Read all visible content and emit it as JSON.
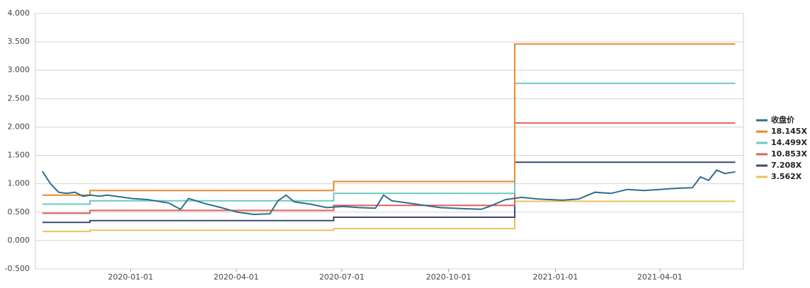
{
  "chart_data": {
    "type": "line",
    "x": [
      "2019-10-17",
      "2019-11-27",
      "2019-11-27",
      "2020-06-24",
      "2020-06-24",
      "2020-11-27",
      "2020-11-27",
      "2021-06-05"
    ],
    "series": [
      {
        "name": "收盘价",
        "color": "#2e6e8e",
        "x": [
          "2019-10-17",
          "2019-10-24",
          "2019-10-31",
          "2019-11-07",
          "2019-11-14",
          "2019-11-21",
          "2019-11-28",
          "2019-12-05",
          "2019-12-12",
          "2019-12-19",
          "2020-01-02",
          "2020-01-16",
          "2020-02-03",
          "2020-02-13",
          "2020-02-20",
          "2020-03-05",
          "2020-03-19",
          "2020-04-02",
          "2020-04-16",
          "2020-04-30",
          "2020-05-07",
          "2020-05-14",
          "2020-05-21",
          "2020-06-04",
          "2020-06-18",
          "2020-07-02",
          "2020-07-16",
          "2020-07-30",
          "2020-08-06",
          "2020-08-13",
          "2020-08-27",
          "2020-09-10",
          "2020-09-24",
          "2020-10-15",
          "2020-10-29",
          "2020-11-05",
          "2020-11-19",
          "2020-12-03",
          "2020-12-17",
          "2021-01-07",
          "2021-01-21",
          "2021-02-04",
          "2021-02-18",
          "2021-03-04",
          "2021-03-18",
          "2021-04-01",
          "2021-04-15",
          "2021-04-29",
          "2021-05-06",
          "2021-05-13",
          "2021-05-20",
          "2021-05-27",
          "2021-06-05"
        ],
        "values": [
          1.22,
          1.0,
          0.85,
          0.83,
          0.85,
          0.78,
          0.8,
          0.78,
          0.8,
          0.78,
          0.74,
          0.72,
          0.66,
          0.55,
          0.74,
          0.65,
          0.58,
          0.5,
          0.46,
          0.47,
          0.7,
          0.8,
          0.68,
          0.64,
          0.58,
          0.6,
          0.58,
          0.57,
          0.8,
          0.7,
          0.66,
          0.62,
          0.58,
          0.56,
          0.55,
          0.6,
          0.72,
          0.76,
          0.73,
          0.71,
          0.73,
          0.85,
          0.83,
          0.9,
          0.88,
          0.9,
          0.92,
          0.93,
          1.12,
          1.06,
          1.24,
          1.18,
          1.21
        ]
      },
      {
        "name": "18.145X",
        "color": "#e8892b",
        "values": [
          0.8,
          0.8,
          0.88,
          0.88,
          1.04,
          1.04,
          3.46,
          3.46
        ]
      },
      {
        "name": "14.499X",
        "color": "#6cc9c4",
        "values": [
          0.64,
          0.64,
          0.7,
          0.7,
          0.83,
          0.83,
          2.77,
          2.77
        ]
      },
      {
        "name": "10.853X",
        "color": "#e0605c",
        "values": [
          0.48,
          0.48,
          0.53,
          0.53,
          0.62,
          0.62,
          2.07,
          2.07
        ]
      },
      {
        "name": "7.208X",
        "color": "#3e4a6e",
        "values": [
          0.32,
          0.32,
          0.35,
          0.35,
          0.41,
          0.41,
          1.38,
          1.38
        ]
      },
      {
        "name": "3.562X",
        "color": "#e9c35a",
        "values": [
          0.16,
          0.16,
          0.18,
          0.18,
          0.21,
          0.21,
          0.69,
          0.69
        ]
      }
    ],
    "xlim": [
      "2019-10-11",
      "2021-06-12"
    ],
    "xticks": [
      "2020-01-01",
      "2020-04-01",
      "2020-07-01",
      "2020-10-01",
      "2021-01-01",
      "2021-04-01"
    ],
    "ylim": [
      -0.5,
      4.0
    ],
    "yticks": [
      {
        "value": -0.5,
        "label": "-0.500"
      },
      {
        "value": 0,
        "label": "0.000"
      },
      {
        "value": 0.5,
        "label": "0.500"
      },
      {
        "value": 1,
        "label": "1.000"
      },
      {
        "value": 1.5,
        "label": "1.500"
      },
      {
        "value": 2,
        "label": "2.000"
      },
      {
        "value": 2.5,
        "label": "2.500"
      },
      {
        "value": 3,
        "label": "3.000"
      },
      {
        "value": 3.5,
        "label": "3.500"
      },
      {
        "value": 4,
        "label": "4.000"
      }
    ],
    "grid": true,
    "legend": "right"
  }
}
